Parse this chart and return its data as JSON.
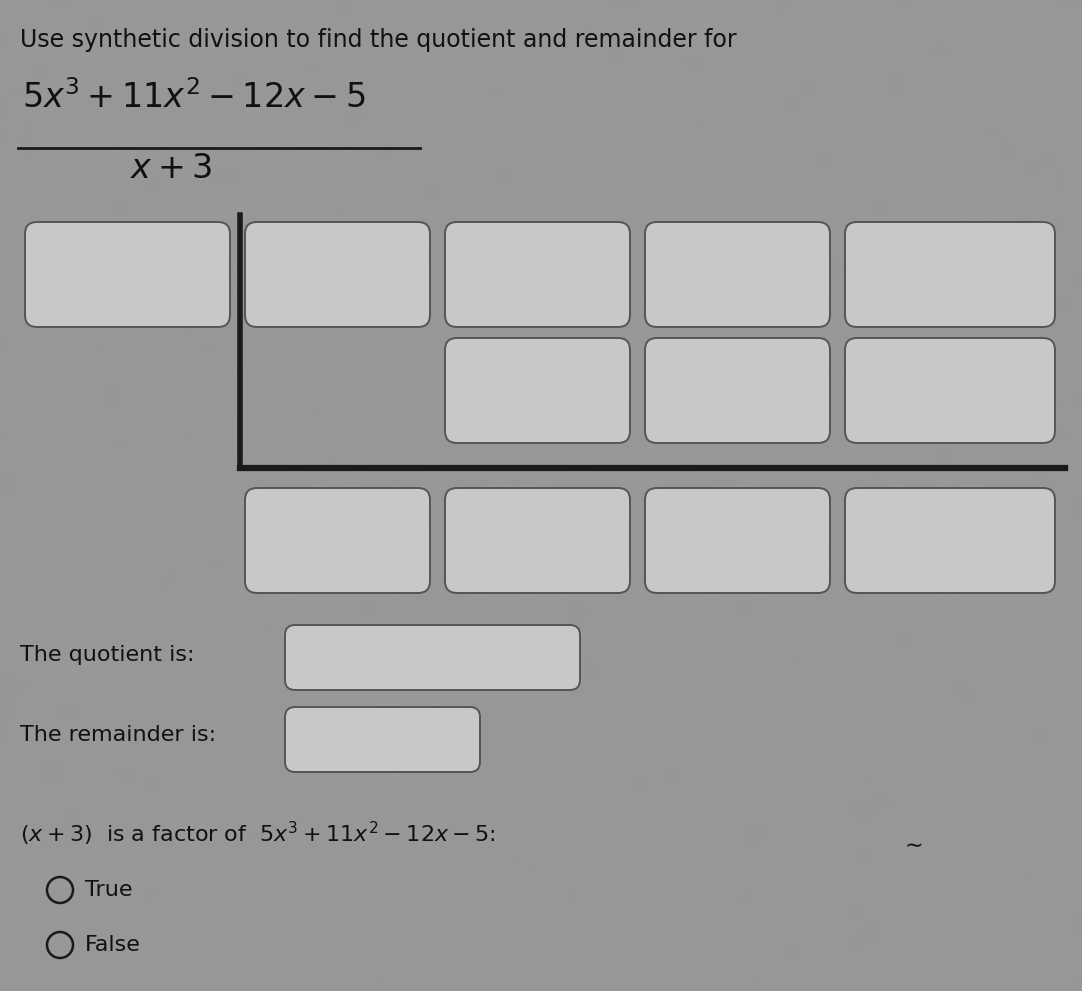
{
  "title": "Use synthetic division to find the quotient and remainder for",
  "bg_color": "#c8c8c8",
  "box_facecolor": "#c8c8c8",
  "box_edgecolor": "#555555",
  "line_color": "#1a1a1a",
  "text_color": "#111111",
  "quotient_label": "The quotient is:",
  "remainder_label": "The remainder is:",
  "true_label": "True",
  "false_label": "False",
  "title_fontsize": 17,
  "math_fontsize": 24,
  "label_fontsize": 16,
  "factor_fontsize": 16
}
